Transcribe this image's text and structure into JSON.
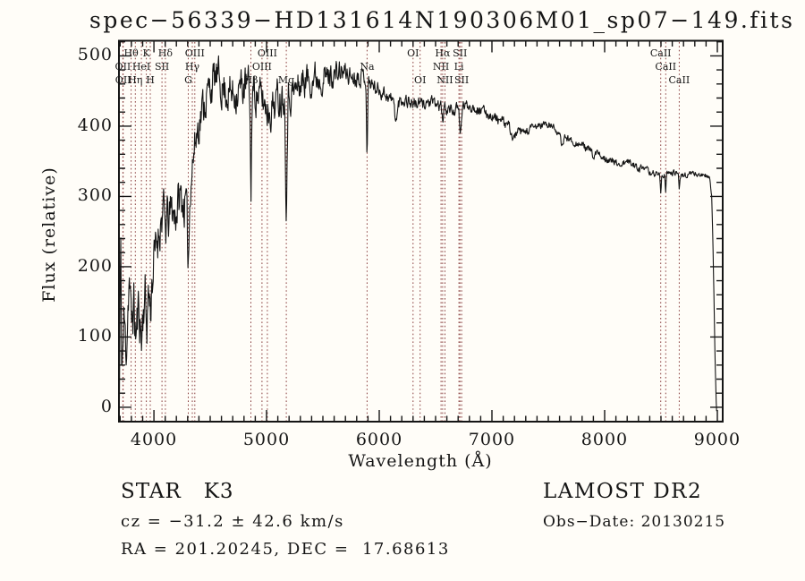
{
  "colors": {
    "background": "#fffdf8",
    "ink": "#151515",
    "spectrum_line": "#141414",
    "line_marker": "#8a4040"
  },
  "annotations": {
    "class_line": "STAR   K3",
    "cz_line": "cz = −31.2 ± 42.6 km/s",
    "radec_line": "RA = 201.20245, DEC =  17.68613",
    "survey": "LAMOST DR2",
    "obs_date": "Obs−Date: 20130215"
  },
  "chart_data": {
    "type": "line",
    "title": "spec−56339−HD131614N190306M01_sp07−149.fits",
    "xlabel": "Wavelength (Å)",
    "ylabel": "Flux (relative)",
    "x_domain": [
      3690,
      9048
    ],
    "y_domain": [
      -20.5,
      521.5
    ],
    "x_ticks": [
      4000,
      5000,
      6000,
      7000,
      8000,
      9000
    ],
    "y_ticks": [
      0,
      100,
      200,
      300,
      400,
      500
    ],
    "x_minor_step": 100,
    "y_minor_step": 20,
    "grid": false,
    "legend": "none",
    "noise_seed": 11,
    "spectral_lines": [
      {
        "wavelength": 3725,
        "label": "OII",
        "row": 2
      },
      {
        "wavelength": 3727,
        "label": "OII",
        "row": 3
      },
      {
        "wavelength": 3798,
        "label": "Hθ",
        "row": 1
      },
      {
        "wavelength": 3835,
        "label": "Hη",
        "row": 3
      },
      {
        "wavelength": 3889,
        "label": "HeI",
        "row": 2
      },
      {
        "wavelength": 3933,
        "label": "K",
        "row": 1
      },
      {
        "wavelength": 3968,
        "label": "H",
        "row": 3
      },
      {
        "wavelength": 4072,
        "label": "SII",
        "row": 2
      },
      {
        "wavelength": 4102,
        "label": "Hδ",
        "row": 1
      },
      {
        "wavelength": 4305,
        "label": "G",
        "row": 3
      },
      {
        "wavelength": 4341,
        "label": "Hγ",
        "row": 2
      },
      {
        "wavelength": 4363,
        "label": "OIII",
        "row": 1
      },
      {
        "wavelength": 4861,
        "label": "Hβ",
        "row": 3
      },
      {
        "wavelength": 4959,
        "label": "OIII",
        "row": 2
      },
      {
        "wavelength": 5007,
        "label": "OIII",
        "row": 1
      },
      {
        "wavelength": 5175,
        "label": "Mg",
        "row": 3
      },
      {
        "wavelength": 5892,
        "label": "Na",
        "row": 2
      },
      {
        "wavelength": 6300,
        "label": "OI",
        "row": 1
      },
      {
        "wavelength": 6363,
        "label": "OI",
        "row": 3
      },
      {
        "wavelength": 6548,
        "label": "NII",
        "row": 2
      },
      {
        "wavelength": 6563,
        "label": "Hα",
        "row": 1
      },
      {
        "wavelength": 6583,
        "label": "NII",
        "row": 3
      },
      {
        "wavelength": 6707,
        "label": "Li",
        "row": 2
      },
      {
        "wavelength": 6716,
        "label": "SII",
        "row": 1
      },
      {
        "wavelength": 6731,
        "label": "SII",
        "row": 3
      },
      {
        "wavelength": 8498,
        "label": "CaII",
        "row": 1
      },
      {
        "wavelength": 8542,
        "label": "CaII",
        "row": 2
      },
      {
        "wavelength": 8662,
        "label": "CaII",
        "row": 3
      }
    ],
    "absorption_dips": [
      {
        "wavelength": 3933,
        "depth": 22,
        "sigma": 5
      },
      {
        "wavelength": 3968,
        "depth": 20,
        "sigma": 5
      },
      {
        "wavelength": 4102,
        "depth": 15,
        "sigma": 4
      },
      {
        "wavelength": 4305,
        "depth": 95,
        "sigma": 9
      },
      {
        "wavelength": 4861,
        "depth": 148,
        "sigma": 5
      },
      {
        "wavelength": 5175,
        "depth": 145,
        "sigma": 7
      },
      {
        "wavelength": 5892,
        "depth": 102,
        "sigma": 5
      },
      {
        "wavelength": 6150,
        "depth": 25,
        "sigma": 12
      },
      {
        "wavelength": 6563,
        "depth": 24,
        "sigma": 5
      },
      {
        "wavelength": 6720,
        "depth": 40,
        "sigma": 7
      },
      {
        "wavelength": 7190,
        "depth": 14,
        "sigma": 14
      },
      {
        "wavelength": 7620,
        "depth": 20,
        "sigma": 10
      },
      {
        "wavelength": 7900,
        "depth": 12,
        "sigma": 8
      },
      {
        "wavelength": 8498,
        "depth": 27,
        "sigma": 4
      },
      {
        "wavelength": 8542,
        "depth": 26,
        "sigma": 4
      },
      {
        "wavelength": 8662,
        "depth": 24,
        "sigma": 4
      }
    ],
    "continuum_points": [
      [
        3690,
        150
      ],
      [
        3693,
        -15
      ],
      [
        3696,
        60
      ],
      [
        3701,
        160
      ],
      [
        3705,
        232
      ],
      [
        3709,
        150
      ],
      [
        3714,
        80
      ],
      [
        3720,
        65
      ],
      [
        3728,
        100
      ],
      [
        3736,
        125
      ],
      [
        3744,
        100
      ],
      [
        3752,
        85
      ],
      [
        3760,
        105
      ],
      [
        3768,
        140
      ],
      [
        3776,
        175
      ],
      [
        3784,
        185
      ],
      [
        3792,
        140
      ],
      [
        3800,
        112
      ],
      [
        3810,
        135
      ],
      [
        3820,
        150
      ],
      [
        3830,
        125
      ],
      [
        3840,
        100
      ],
      [
        3850,
        115
      ],
      [
        3860,
        132
      ],
      [
        3870,
        145
      ],
      [
        3880,
        118
      ],
      [
        3890,
        95
      ],
      [
        3900,
        125
      ],
      [
        3910,
        150
      ],
      [
        3920,
        162
      ],
      [
        3930,
        148
      ],
      [
        3940,
        135
      ],
      [
        3950,
        160
      ],
      [
        3960,
        165
      ],
      [
        3970,
        155
      ],
      [
        3980,
        175
      ],
      [
        3990,
        190
      ],
      [
        4000,
        205
      ],
      [
        4015,
        222
      ],
      [
        4030,
        240
      ],
      [
        4045,
        252
      ],
      [
        4060,
        265
      ],
      [
        4075,
        275
      ],
      [
        4090,
        272
      ],
      [
        4105,
        262
      ],
      [
        4120,
        270
      ],
      [
        4135,
        265
      ],
      [
        4150,
        278
      ],
      [
        4165,
        285
      ],
      [
        4180,
        272
      ],
      [
        4195,
        278
      ],
      [
        4210,
        288
      ],
      [
        4225,
        296
      ],
      [
        4240,
        300
      ],
      [
        4255,
        292
      ],
      [
        4270,
        288
      ],
      [
        4285,
        295
      ],
      [
        4300,
        305
      ],
      [
        4315,
        318
      ],
      [
        4330,
        335
      ],
      [
        4345,
        352
      ],
      [
        4360,
        368
      ],
      [
        4375,
        385
      ],
      [
        4390,
        398
      ],
      [
        4405,
        408
      ],
      [
        4420,
        418
      ],
      [
        4435,
        428
      ],
      [
        4450,
        436
      ],
      [
        4465,
        442
      ],
      [
        4480,
        448
      ],
      [
        4500,
        455
      ],
      [
        4520,
        462
      ],
      [
        4540,
        467
      ],
      [
        4560,
        470
      ],
      [
        4580,
        464
      ],
      [
        4600,
        458
      ],
      [
        4630,
        452
      ],
      [
        4660,
        448
      ],
      [
        4690,
        445
      ],
      [
        4720,
        448
      ],
      [
        4750,
        452
      ],
      [
        4780,
        455
      ],
      [
        4810,
        458
      ],
      [
        4840,
        456
      ],
      [
        4870,
        452
      ],
      [
        4900,
        448
      ],
      [
        4930,
        444
      ],
      [
        4960,
        438
      ],
      [
        4990,
        430
      ],
      [
        5020,
        424
      ],
      [
        5050,
        428
      ],
      [
        5080,
        436
      ],
      [
        5110,
        442
      ],
      [
        5140,
        446
      ],
      [
        5170,
        446
      ],
      [
        5200,
        446
      ],
      [
        5230,
        448
      ],
      [
        5260,
        452
      ],
      [
        5290,
        458
      ],
      [
        5320,
        464
      ],
      [
        5350,
        468
      ],
      [
        5380,
        466
      ],
      [
        5410,
        469
      ],
      [
        5440,
        471
      ],
      [
        5470,
        469
      ],
      [
        5500,
        471
      ],
      [
        5530,
        470
      ],
      [
        5560,
        472
      ],
      [
        5590,
        473
      ],
      [
        5620,
        474
      ],
      [
        5650,
        476
      ],
      [
        5680,
        477
      ],
      [
        5710,
        475
      ],
      [
        5740,
        472
      ],
      [
        5770,
        470
      ],
      [
        5800,
        471
      ],
      [
        5830,
        473
      ],
      [
        5860,
        472
      ],
      [
        5890,
        468
      ],
      [
        5920,
        462
      ],
      [
        5950,
        457
      ],
      [
        5980,
        453
      ],
      [
        6010,
        451
      ],
      [
        6040,
        448
      ],
      [
        6070,
        444
      ],
      [
        6100,
        439
      ],
      [
        6130,
        436
      ],
      [
        6160,
        434
      ],
      [
        6190,
        437
      ],
      [
        6220,
        438
      ],
      [
        6250,
        437
      ],
      [
        6280,
        434
      ],
      [
        6310,
        432
      ],
      [
        6340,
        432
      ],
      [
        6370,
        431
      ],
      [
        6400,
        433
      ],
      [
        6430,
        434
      ],
      [
        6460,
        433
      ],
      [
        6490,
        432
      ],
      [
        6520,
        430
      ],
      [
        6550,
        428
      ],
      [
        6580,
        426
      ],
      [
        6610,
        425
      ],
      [
        6640,
        423
      ],
      [
        6670,
        422
      ],
      [
        6700,
        424
      ],
      [
        6730,
        427
      ],
      [
        6760,
        429
      ],
      [
        6790,
        430
      ],
      [
        6820,
        428
      ],
      [
        6850,
        426
      ],
      [
        6880,
        424
      ],
      [
        6910,
        422
      ],
      [
        6940,
        420
      ],
      [
        6970,
        417
      ],
      [
        7000,
        414
      ],
      [
        7030,
        412
      ],
      [
        7060,
        409
      ],
      [
        7090,
        406
      ],
      [
        7120,
        403
      ],
      [
        7150,
        400
      ],
      [
        7180,
        396
      ],
      [
        7210,
        393
      ],
      [
        7240,
        391
      ],
      [
        7270,
        390
      ],
      [
        7300,
        392
      ],
      [
        7330,
        394
      ],
      [
        7360,
        397
      ],
      [
        7390,
        399
      ],
      [
        7420,
        401
      ],
      [
        7450,
        402
      ],
      [
        7480,
        402
      ],
      [
        7510,
        401
      ],
      [
        7540,
        399
      ],
      [
        7570,
        395
      ],
      [
        7600,
        391
      ],
      [
        7630,
        387
      ],
      [
        7660,
        384
      ],
      [
        7690,
        381
      ],
      [
        7720,
        378
      ],
      [
        7750,
        376
      ],
      [
        7780,
        374
      ],
      [
        7810,
        372
      ],
      [
        7840,
        369
      ],
      [
        7870,
        366
      ],
      [
        7900,
        363
      ],
      [
        7930,
        361
      ],
      [
        7960,
        358
      ],
      [
        7990,
        356
      ],
      [
        8020,
        354
      ],
      [
        8050,
        351
      ],
      [
        8080,
        349
      ],
      [
        8110,
        347
      ],
      [
        8140,
        346
      ],
      [
        8170,
        347
      ],
      [
        8200,
        349
      ],
      [
        8230,
        348
      ],
      [
        8260,
        345
      ],
      [
        8290,
        342
      ],
      [
        8320,
        340
      ],
      [
        8350,
        338
      ],
      [
        8380,
        336
      ],
      [
        8410,
        334
      ],
      [
        8440,
        333
      ],
      [
        8470,
        332
      ],
      [
        8500,
        331
      ],
      [
        8530,
        330
      ],
      [
        8560,
        332
      ],
      [
        8590,
        334
      ],
      [
        8620,
        333
      ],
      [
        8650,
        332
      ],
      [
        8680,
        331
      ],
      [
        8710,
        330
      ],
      [
        8740,
        332
      ],
      [
        8770,
        333
      ],
      [
        8800,
        332
      ],
      [
        8830,
        331
      ],
      [
        8860,
        330
      ],
      [
        8890,
        330
      ],
      [
        8915,
        329
      ],
      [
        8935,
        326
      ],
      [
        8950,
        300
      ],
      [
        8960,
        240
      ],
      [
        8970,
        160
      ],
      [
        8980,
        70
      ],
      [
        8990,
        10
      ],
      [
        8996,
        -14
      ]
    ],
    "noise_amplitude_points": [
      [
        3690,
        40
      ],
      [
        3750,
        42
      ],
      [
        3850,
        40
      ],
      [
        3950,
        38
      ],
      [
        4050,
        34
      ],
      [
        4200,
        32
      ],
      [
        4350,
        30
      ],
      [
        4500,
        27
      ],
      [
        4700,
        28
      ],
      [
        4900,
        27
      ],
      [
        5100,
        28
      ],
      [
        5300,
        24
      ],
      [
        5500,
        20
      ],
      [
        5700,
        15
      ],
      [
        5900,
        11
      ],
      [
        6100,
        10
      ],
      [
        6300,
        9
      ],
      [
        6500,
        8
      ],
      [
        6700,
        8
      ],
      [
        6900,
        7
      ],
      [
        7100,
        7
      ],
      [
        7300,
        6
      ],
      [
        7500,
        6
      ],
      [
        7700,
        5
      ],
      [
        7900,
        5
      ],
      [
        8100,
        5
      ],
      [
        8300,
        5
      ],
      [
        8500,
        4
      ],
      [
        8700,
        4
      ],
      [
        8850,
        4
      ],
      [
        8930,
        3
      ],
      [
        8960,
        2
      ],
      [
        8996,
        1
      ]
    ]
  }
}
